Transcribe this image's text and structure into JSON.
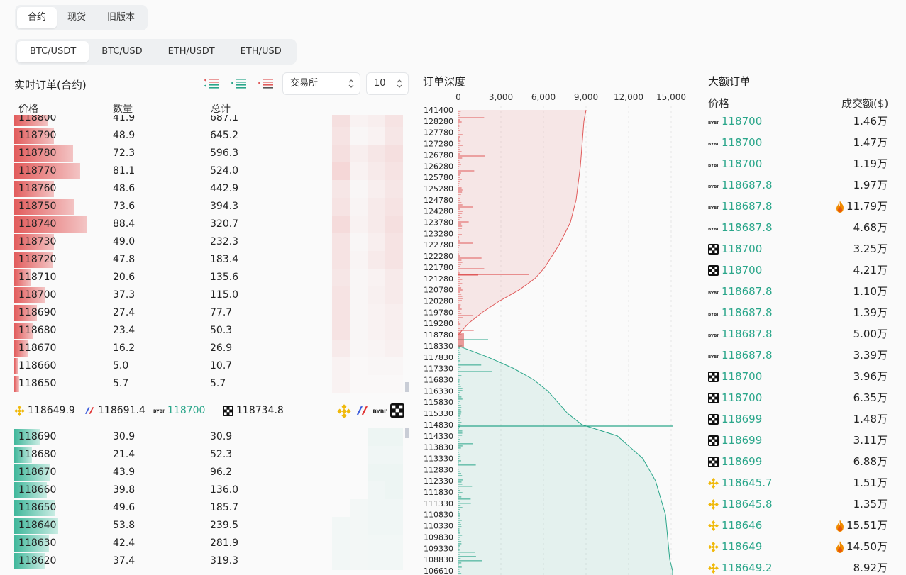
{
  "top_tabs": [
    "合约",
    "现货",
    "旧版本"
  ],
  "pair_tabs": [
    "BTC/USDT",
    "BTC/USD",
    "ETH/USDT",
    "ETH/USD"
  ],
  "orderbook": {
    "title": "实时订单(合约)",
    "exchange_select": "交易所",
    "depth_select": "10",
    "headers": {
      "price": "价格",
      "qty": "数量",
      "total": "总计"
    },
    "asks": [
      {
        "price": "118800",
        "qty": "41.9",
        "total": "687.1"
      },
      {
        "price": "118790",
        "qty": "48.9",
        "total": "645.2"
      },
      {
        "price": "118780",
        "qty": "72.3",
        "total": "596.3"
      },
      {
        "price": "118770",
        "qty": "81.1",
        "total": "524.0"
      },
      {
        "price": "118760",
        "qty": "48.6",
        "total": "442.9"
      },
      {
        "price": "118750",
        "qty": "73.6",
        "total": "394.3"
      },
      {
        "price": "118740",
        "qty": "88.4",
        "total": "320.7"
      },
      {
        "price": "118730",
        "qty": "49.0",
        "total": "232.3"
      },
      {
        "price": "118720",
        "qty": "47.8",
        "total": "183.4"
      },
      {
        "price": "118710",
        "qty": "20.6",
        "total": "135.6"
      },
      {
        "price": "118700",
        "qty": "37.3",
        "total": "115.0"
      },
      {
        "price": "118690",
        "qty": "27.4",
        "total": "77.7"
      },
      {
        "price": "118680",
        "qty": "23.4",
        "total": "50.3"
      },
      {
        "price": "118670",
        "qty": "16.2",
        "total": "26.9"
      },
      {
        "price": "118660",
        "qty": "5.0",
        "total": "10.7"
      },
      {
        "price": "118650",
        "qty": "5.7",
        "total": "5.7"
      }
    ],
    "exchange_prices": [
      {
        "icon": "binance-icon",
        "price": "118649.9"
      },
      {
        "icon": "bitmex-icon",
        "price": "118691.4"
      },
      {
        "icon": "bybit-icon",
        "price": "118700"
      },
      {
        "icon": "okx-icon",
        "price": "118734.8"
      }
    ],
    "bids": [
      {
        "price": "118690",
        "qty": "30.9",
        "total": "30.9"
      },
      {
        "price": "118680",
        "qty": "21.4",
        "total": "52.3"
      },
      {
        "price": "118670",
        "qty": "43.9",
        "total": "96.2"
      },
      {
        "price": "118660",
        "qty": "39.8",
        "total": "136.0"
      },
      {
        "price": "118650",
        "qty": "49.6",
        "total": "185.7"
      },
      {
        "price": "118640",
        "qty": "53.8",
        "total": "239.5"
      },
      {
        "price": "118630",
        "qty": "42.4",
        "total": "281.9"
      },
      {
        "price": "118620",
        "qty": "37.4",
        "total": "319.3"
      }
    ]
  },
  "depth_chart": {
    "title": "订单深度",
    "x_ticks": [
      "0",
      "3,000",
      "6,000",
      "9,000",
      "12,000",
      "15,000"
    ],
    "y_labels": [
      "141400",
      "128280",
      "127780",
      "127280",
      "126780",
      "126280",
      "125780",
      "125280",
      "124780",
      "124280",
      "123780",
      "123280",
      "122780",
      "122280",
      "121780",
      "121280",
      "120780",
      "120280",
      "119780",
      "119280",
      "118780",
      "118330",
      "117830",
      "117330",
      "116830",
      "116330",
      "115830",
      "115330",
      "114830",
      "114330",
      "113830",
      "113330",
      "112830",
      "112330",
      "111830",
      "111330",
      "110830",
      "110330",
      "109830",
      "109330",
      "108830",
      "106610"
    ]
  },
  "chart_data": {
    "type": "area",
    "x_axis": "cumulative quantity",
    "xlim": [
      0,
      15000
    ],
    "asks_cumulative": [
      [
        118780,
        0
      ],
      [
        119280,
        700
      ],
      [
        119780,
        1700
      ],
      [
        120280,
        2900
      ],
      [
        120780,
        4300
      ],
      [
        121280,
        5400
      ],
      [
        121780,
        6100
      ],
      [
        122780,
        7100
      ],
      [
        123780,
        7900
      ],
      [
        124780,
        8300
      ],
      [
        126280,
        8600
      ],
      [
        128280,
        8850
      ],
      [
        141400,
        9000
      ]
    ],
    "bids_cumulative": [
      [
        118330,
        0
      ],
      [
        117830,
        2100
      ],
      [
        117330,
        3900
      ],
      [
        116830,
        5300
      ],
      [
        116330,
        6300
      ],
      [
        115830,
        7000
      ],
      [
        115330,
        7700
      ],
      [
        114830,
        8700
      ],
      [
        114330,
        11200
      ],
      [
        113330,
        13000
      ],
      [
        112330,
        13900
      ],
      [
        110830,
        14600
      ],
      [
        108830,
        14900
      ],
      [
        106610,
        15100
      ]
    ],
    "colors": {
      "asks": "#e05a5a",
      "bids": "#2aa68a"
    }
  },
  "whale": {
    "title": "大额订单",
    "headers": {
      "price": "价格",
      "amount": "成交额($)"
    },
    "rows": [
      {
        "ex": "bybit",
        "price": "118700",
        "amount": "1.46万",
        "fire": false
      },
      {
        "ex": "bybit",
        "price": "118700",
        "amount": "1.47万",
        "fire": false
      },
      {
        "ex": "bybit",
        "price": "118700",
        "amount": "1.19万",
        "fire": false
      },
      {
        "ex": "bybit",
        "price": "118687.8",
        "amount": "1.97万",
        "fire": false
      },
      {
        "ex": "bybit",
        "price": "118687.8",
        "amount": "11.79万",
        "fire": true
      },
      {
        "ex": "bybit",
        "price": "118687.8",
        "amount": "4.68万",
        "fire": false
      },
      {
        "ex": "okx",
        "price": "118700",
        "amount": "3.25万",
        "fire": false
      },
      {
        "ex": "okx",
        "price": "118700",
        "amount": "4.21万",
        "fire": false
      },
      {
        "ex": "bybit",
        "price": "118687.8",
        "amount": "1.10万",
        "fire": false
      },
      {
        "ex": "bybit",
        "price": "118687.8",
        "amount": "1.39万",
        "fire": false
      },
      {
        "ex": "bybit",
        "price": "118687.8",
        "amount": "5.00万",
        "fire": false
      },
      {
        "ex": "bybit",
        "price": "118687.8",
        "amount": "3.39万",
        "fire": false
      },
      {
        "ex": "okx",
        "price": "118700",
        "amount": "3.96万",
        "fire": false
      },
      {
        "ex": "okx",
        "price": "118700",
        "amount": "6.35万",
        "fire": false
      },
      {
        "ex": "okx",
        "price": "118699",
        "amount": "1.48万",
        "fire": false
      },
      {
        "ex": "okx",
        "price": "118699",
        "amount": "3.11万",
        "fire": false
      },
      {
        "ex": "okx",
        "price": "118699",
        "amount": "6.88万",
        "fire": false
      },
      {
        "ex": "binance",
        "price": "118645.7",
        "amount": "1.51万",
        "fire": false
      },
      {
        "ex": "binance",
        "price": "118645.8",
        "amount": "1.35万",
        "fire": false
      },
      {
        "ex": "binance",
        "price": "118646",
        "amount": "15.51万",
        "fire": true
      },
      {
        "ex": "binance",
        "price": "118649",
        "amount": "14.50万",
        "fire": true
      },
      {
        "ex": "binance",
        "price": "118649.2",
        "amount": "8.92万",
        "fire": false
      }
    ]
  }
}
